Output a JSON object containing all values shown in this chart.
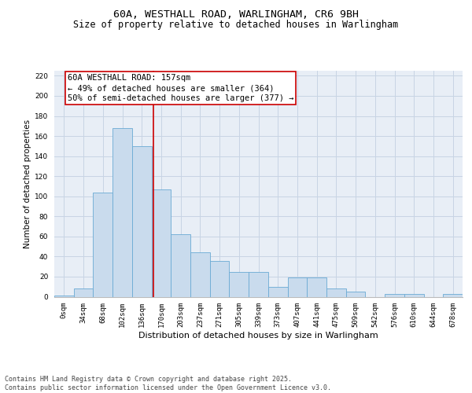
{
  "title_line1": "60A, WESTHALL ROAD, WARLINGHAM, CR6 9BH",
  "title_line2": "Size of property relative to detached houses in Warlingham",
  "xlabel": "Distribution of detached houses by size in Warlingham",
  "ylabel": "Number of detached properties",
  "bar_labels": [
    "0sqm",
    "34sqm",
    "68sqm",
    "102sqm",
    "136sqm",
    "170sqm",
    "203sqm",
    "237sqm",
    "271sqm",
    "305sqm",
    "339sqm",
    "373sqm",
    "407sqm",
    "441sqm",
    "475sqm",
    "509sqm",
    "542sqm",
    "576sqm",
    "610sqm",
    "644sqm",
    "678sqm"
  ],
  "bar_values": [
    1,
    8,
    104,
    168,
    150,
    107,
    62,
    44,
    36,
    25,
    25,
    10,
    19,
    19,
    8,
    5,
    0,
    3,
    3,
    0,
    3
  ],
  "bar_color": "#c9dbed",
  "bar_edge_color": "#6aaad4",
  "grid_color": "#c8d4e4",
  "bg_color": "#e8eef6",
  "vline_color": "#cc0000",
  "annotation_text": "60A WESTHALL ROAD: 157sqm\n← 49% of detached houses are smaller (364)\n50% of semi-detached houses are larger (377) →",
  "annotation_box_color": "#cc0000",
  "ylim": [
    0,
    225
  ],
  "yticks": [
    0,
    20,
    40,
    60,
    80,
    100,
    120,
    140,
    160,
    180,
    200,
    220
  ],
  "footer_text": "Contains HM Land Registry data © Crown copyright and database right 2025.\nContains public sector information licensed under the Open Government Licence v3.0.",
  "title_fontsize": 9.5,
  "subtitle_fontsize": 8.5,
  "xlabel_fontsize": 8,
  "ylabel_fontsize": 7.5,
  "tick_fontsize": 6.5,
  "annotation_fontsize": 7.5,
  "footer_fontsize": 6.0
}
